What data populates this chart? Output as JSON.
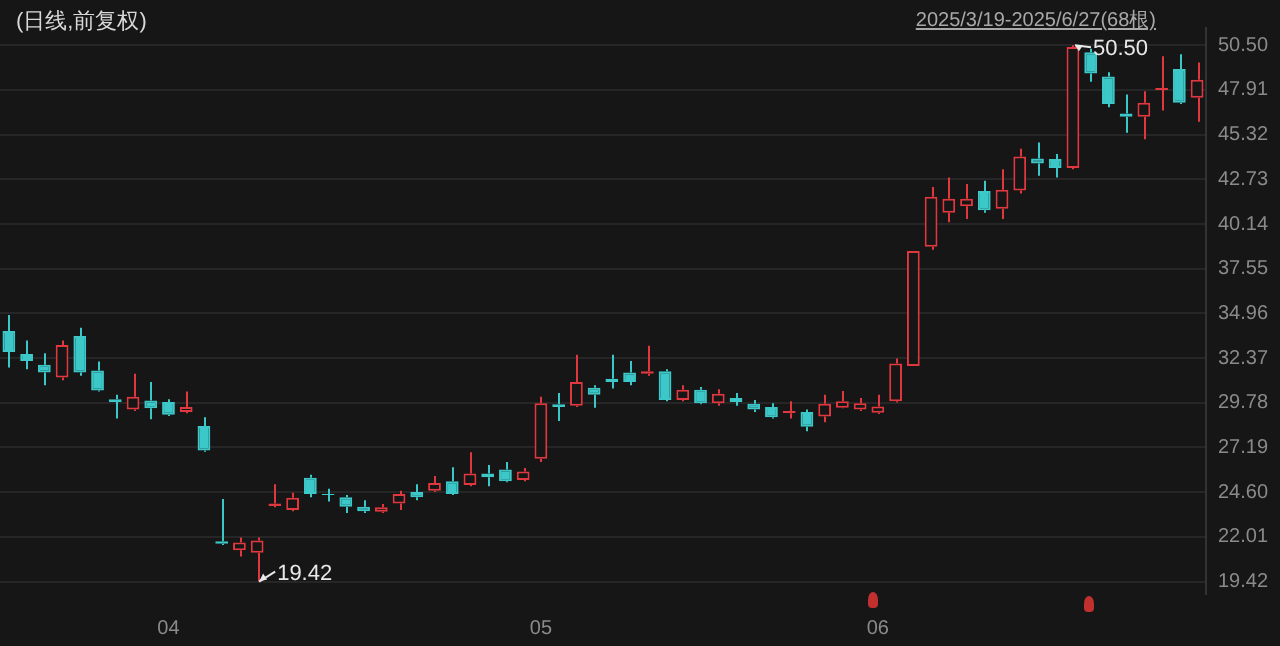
{
  "chart_data": {
    "type": "candlestick",
    "title": "(日线,前复权)",
    "subtitle": "2025/3/19-2025/6/27(68根)",
    "categories": [
      null,
      null,
      null,
      null,
      null,
      null,
      null,
      null,
      null,
      "04",
      null,
      null,
      null,
      null,
      null,
      null,
      null,
      null,
      null,
      null,
      null,
      null,
      null,
      null,
      null,
      null,
      null,
      null,
      null,
      null,
      "05",
      null,
      null,
      null,
      null,
      null,
      null,
      null,
      null,
      null,
      null,
      null,
      null,
      null,
      null,
      null,
      null,
      null,
      null,
      "06",
      null,
      null,
      null,
      null,
      null,
      null,
      null,
      null,
      null,
      null,
      null,
      null,
      null,
      null,
      null,
      null,
      null,
      null
    ],
    "ohlc": [
      [
        33.94,
        34.87,
        31.83,
        32.72
      ],
      [
        32.61,
        33.39,
        31.72,
        32.2
      ],
      [
        31.98,
        32.65,
        30.8,
        31.54
      ],
      [
        31.24,
        33.39,
        31.09,
        33.13
      ],
      [
        33.65,
        34.13,
        31.35,
        31.54
      ],
      [
        31.65,
        32.17,
        30.43,
        30.5
      ],
      [
        29.98,
        30.24,
        28.87,
        29.83
      ],
      [
        29.39,
        31.46,
        29.31,
        30.13
      ],
      [
        29.91,
        30.98,
        28.83,
        29.46
      ],
      [
        29.83,
        29.98,
        29.02,
        29.09
      ],
      [
        29.24,
        30.43,
        29.17,
        29.54
      ],
      [
        28.43,
        28.94,
        26.94,
        27.02
      ],
      [
        21.76,
        24.2,
        21.54,
        21.61
      ],
      [
        21.24,
        21.98,
        20.87,
        21.69
      ],
      [
        21.09,
        21.98,
        19.42,
        21.8
      ],
      [
        23.8,
        25.06,
        23.72,
        23.94
      ],
      [
        23.57,
        24.57,
        23.5,
        24.28
      ],
      [
        25.43,
        25.61,
        24.31,
        24.5
      ],
      [
        24.5,
        24.8,
        24.06,
        24.43
      ],
      [
        24.31,
        24.43,
        23.39,
        23.76
      ],
      [
        23.76,
        24.13,
        23.39,
        23.5
      ],
      [
        23.46,
        23.91,
        23.39,
        23.72
      ],
      [
        23.94,
        24.69,
        23.57,
        24.5
      ],
      [
        24.61,
        25.06,
        24.13,
        24.31
      ],
      [
        24.69,
        25.54,
        24.61,
        25.13
      ],
      [
        25.24,
        26.04,
        24.43,
        24.5
      ],
      [
        25.02,
        26.91,
        24.94,
        25.69
      ],
      [
        25.69,
        26.17,
        24.94,
        25.46
      ],
      [
        25.91,
        26.35,
        25.17,
        25.24
      ],
      [
        25.31,
        26.0,
        25.24,
        25.8
      ],
      [
        26.54,
        30.13,
        26.35,
        29.76
      ],
      [
        29.69,
        30.35,
        28.72,
        29.54
      ],
      [
        29.61,
        32.57,
        29.54,
        30.98
      ],
      [
        30.65,
        30.8,
        29.5,
        30.24
      ],
      [
        31.17,
        32.57,
        30.61,
        30.98
      ],
      [
        31.54,
        32.2,
        30.8,
        30.98
      ],
      [
        31.46,
        33.09,
        31.35,
        31.61
      ],
      [
        31.61,
        31.72,
        29.87,
        29.94
      ],
      [
        29.94,
        30.8,
        29.87,
        30.54
      ],
      [
        30.54,
        30.69,
        29.69,
        29.76
      ],
      [
        29.76,
        30.57,
        29.61,
        30.31
      ],
      [
        30.06,
        30.35,
        29.61,
        29.83
      ],
      [
        29.72,
        29.94,
        29.24,
        29.39
      ],
      [
        29.54,
        29.76,
        28.87,
        28.94
      ],
      [
        29.17,
        29.87,
        28.87,
        29.31
      ],
      [
        29.24,
        29.39,
        28.13,
        28.39
      ],
      [
        28.98,
        30.24,
        28.65,
        29.72
      ],
      [
        29.5,
        30.46,
        29.46,
        29.87
      ],
      [
        29.39,
        30.06,
        29.31,
        29.76
      ],
      [
        29.2,
        30.24,
        29.13,
        29.57
      ],
      [
        29.87,
        32.35,
        29.8,
        32.06
      ],
      [
        31.91,
        38.57,
        31.91,
        38.57
      ],
      [
        38.83,
        42.28,
        38.65,
        41.72
      ],
      [
        40.8,
        42.83,
        40.24,
        41.61
      ],
      [
        41.17,
        42.46,
        40.43,
        41.61
      ],
      [
        42.06,
        42.65,
        40.8,
        40.94
      ],
      [
        41.02,
        43.31,
        40.43,
        42.13
      ],
      [
        42.09,
        44.5,
        41.91,
        44.06
      ],
      [
        43.94,
        44.87,
        42.94,
        43.65
      ],
      [
        43.91,
        44.2,
        42.83,
        43.39
      ],
      [
        43.39,
        50.5,
        43.31,
        50.4
      ],
      [
        50.1,
        50.3,
        48.39,
        48.87
      ],
      [
        48.69,
        48.94,
        46.91,
        47.09
      ],
      [
        46.54,
        47.65,
        45.43,
        46.35
      ],
      [
        46.35,
        47.83,
        45.06,
        47.17
      ],
      [
        47.91,
        49.87,
        46.72,
        48.02
      ],
      [
        49.13,
        49.98,
        47.09,
        47.17
      ],
      [
        47.46,
        49.5,
        46.06,
        48.5
      ]
    ],
    "colors": [
      "#3cc8c8",
      "#3cc8c8",
      "#3cc8c8",
      "#e0383e",
      "#3cc8c8",
      "#3cc8c8",
      "#3cc8c8",
      "#e0383e",
      "#3cc8c8",
      "#3cc8c8",
      "#e0383e",
      "#3cc8c8",
      "#3cc8c8",
      "#e0383e",
      "#e0383e",
      "#e0383e",
      "#e0383e",
      "#3cc8c8",
      "#3cc8c8",
      "#3cc8c8",
      "#3cc8c8",
      "#e0383e",
      "#e0383e",
      "#3cc8c8",
      "#e0383e",
      "#3cc8c8",
      "#e0383e",
      "#3cc8c8",
      "#3cc8c8",
      "#e0383e",
      "#e0383e",
      "#3cc8c8",
      "#e0383e",
      "#3cc8c8",
      "#3cc8c8",
      "#3cc8c8",
      "#e0383e",
      "#3cc8c8",
      "#e0383e",
      "#3cc8c8",
      "#e0383e",
      "#3cc8c8",
      "#3cc8c8",
      "#3cc8c8",
      "#e0383e",
      "#3cc8c8",
      "#e0383e",
      "#e0383e",
      "#e0383e",
      "#e0383e",
      "#e0383e",
      "#e0383e",
      "#e0383e",
      "#e0383e",
      "#e0383e",
      "#3cc8c8",
      "#e0383e",
      "#e0383e",
      "#3cc8c8",
      "#3cc8c8",
      "#e0383e",
      "#3cc8c8",
      "#3cc8c8",
      "#3cc8c8",
      "#e0383e",
      "#e0383e",
      "#3cc8c8",
      "#e0383e"
    ],
    "ylim": [
      18.7,
      51.5
    ],
    "yticks": [
      {
        "value": 19.42,
        "label": "19.42"
      },
      {
        "value": 22.01,
        "label": "22.01"
      },
      {
        "value": 24.6,
        "label": "24.60"
      },
      {
        "value": 27.19,
        "label": "27.19"
      },
      {
        "value": 29.78,
        "label": "29.78"
      },
      {
        "value": 32.37,
        "label": "32.37"
      },
      {
        "value": 34.96,
        "label": "34.96"
      },
      {
        "value": 37.55,
        "label": "37.55"
      },
      {
        "value": 40.14,
        "label": "40.14"
      },
      {
        "value": 42.73,
        "label": "42.73"
      },
      {
        "value": 45.32,
        "label": "45.32"
      },
      {
        "value": 47.91,
        "label": "47.91"
      },
      {
        "value": 50.5,
        "label": "50.50"
      }
    ],
    "grid": "y",
    "legend": false,
    "annotations": [
      "50.50",
      "19.42"
    ]
  }
}
